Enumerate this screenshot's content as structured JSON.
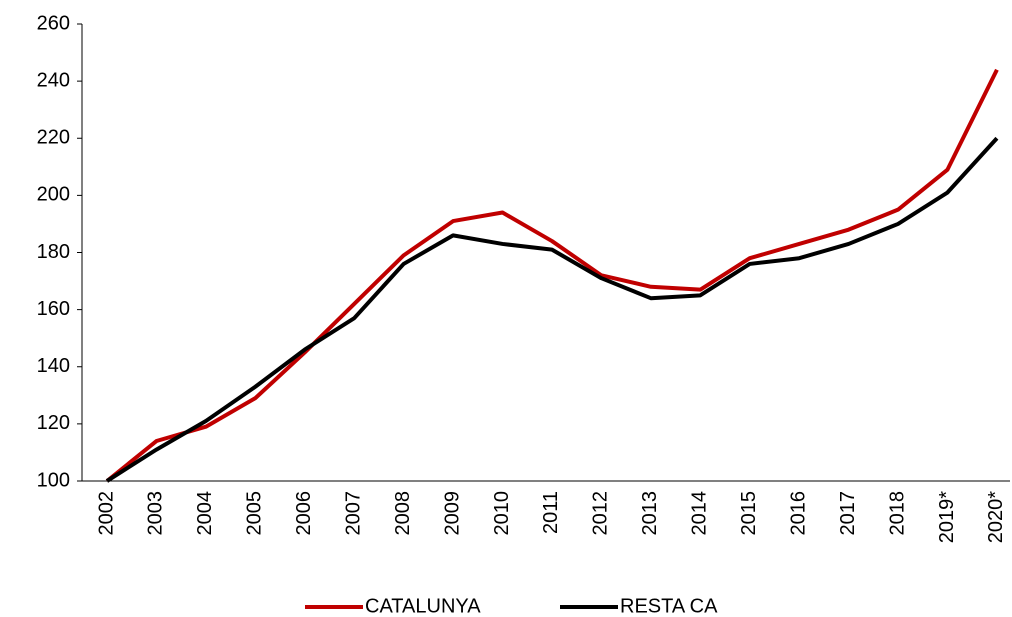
{
  "chart_data": {
    "type": "line",
    "categories": [
      "2002",
      "2003",
      "2004",
      "2005",
      "2006",
      "2007",
      "2008",
      "2009",
      "2010",
      "2011",
      "2012",
      "2013",
      "2014",
      "2015",
      "2016",
      "2017",
      "2018",
      "2019*",
      "2020*"
    ],
    "series": [
      {
        "name": "CATALUNYA",
        "color": "#c00000",
        "values": [
          100,
          114,
          119,
          129,
          145,
          162,
          179,
          191,
          194,
          184,
          172,
          168,
          167,
          178,
          183,
          188,
          195,
          209,
          244
        ]
      },
      {
        "name": "RESTA CA",
        "color": "#000000",
        "values": [
          100,
          111,
          121,
          133,
          146,
          157,
          176,
          186,
          183,
          181,
          171,
          164,
          165,
          176,
          178,
          183,
          190,
          201,
          220
        ]
      }
    ],
    "ylim": [
      100,
      260
    ],
    "yticks": [
      100,
      120,
      140,
      160,
      180,
      200,
      220,
      240,
      260
    ],
    "grid": false,
    "legend": "bottom"
  }
}
